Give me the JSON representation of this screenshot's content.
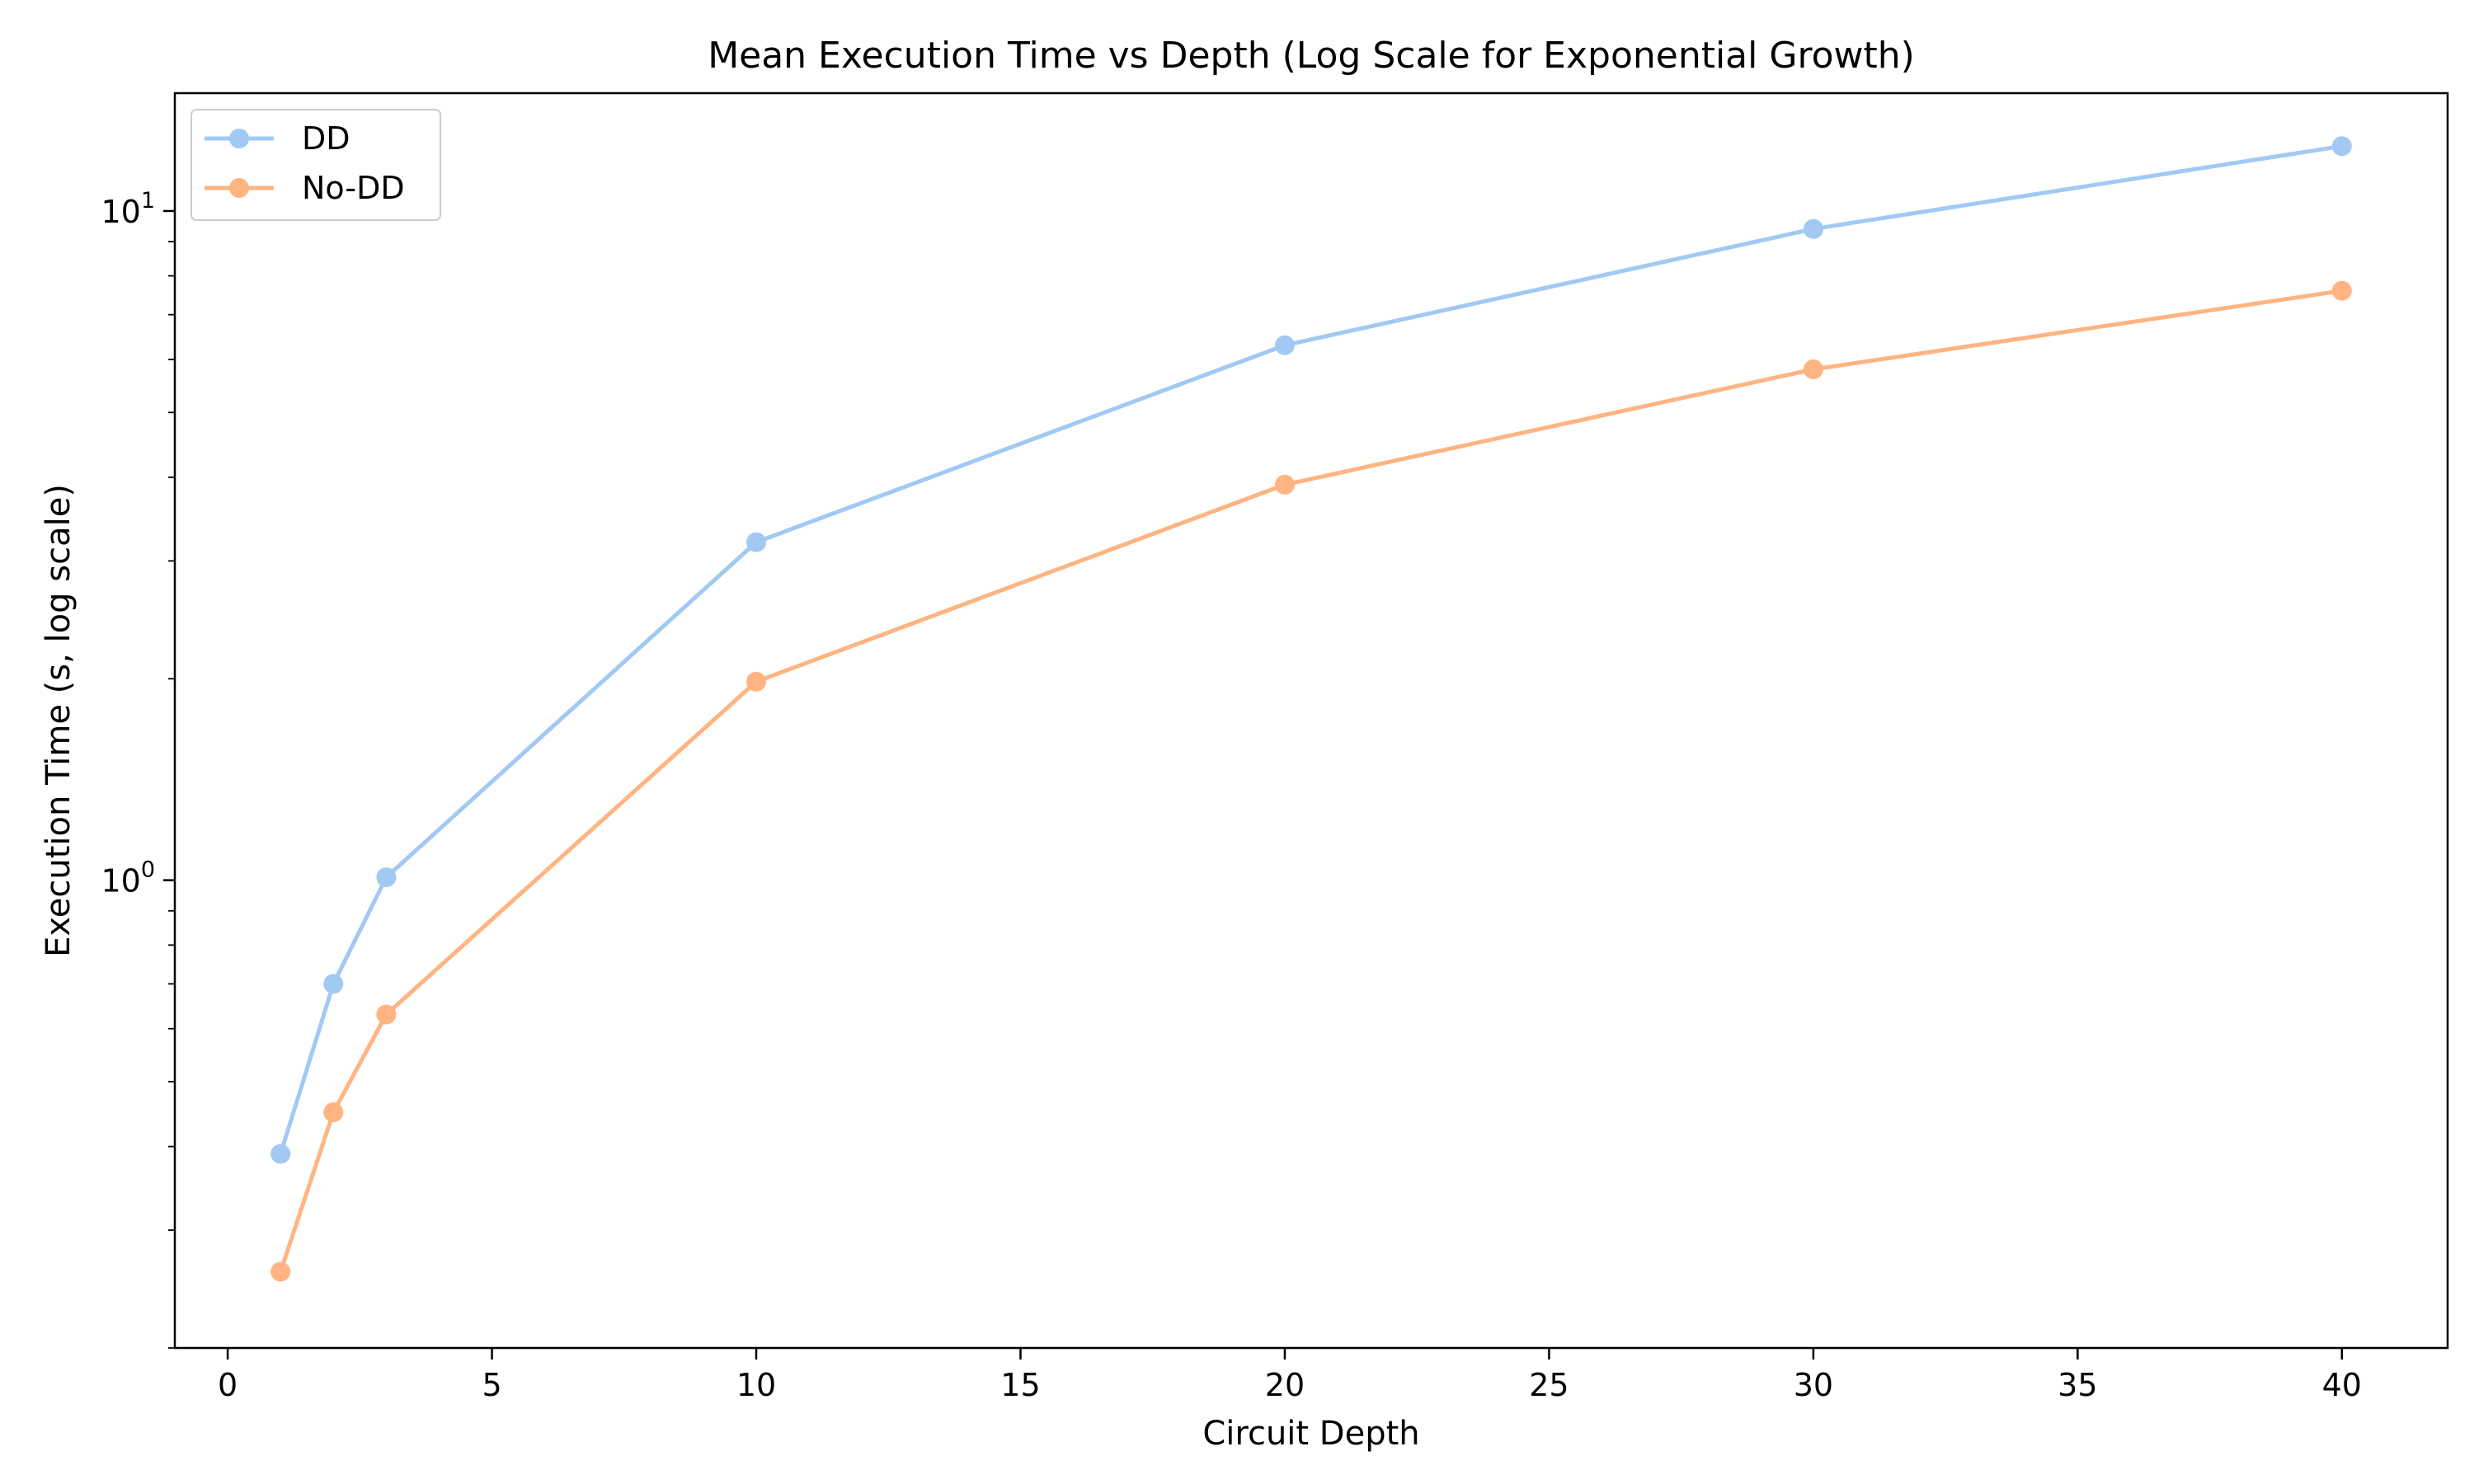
{
  "chart_data": {
    "type": "line",
    "title": "Mean Execution Time vs Depth (Log Scale for Exponential Growth)",
    "xlabel": "Circuit Depth",
    "ylabel": "Execution Time (s, log scale)",
    "x": [
      1,
      2,
      3,
      10,
      20,
      30,
      40
    ],
    "xlim": [
      -1,
      42
    ],
    "ylim": [
      0.2,
      15
    ],
    "yscale": "log",
    "x_ticks": [
      0,
      5,
      10,
      15,
      20,
      25,
      30,
      35,
      40
    ],
    "x_tick_labels": [
      "0",
      "5",
      "10",
      "15",
      "20",
      "25",
      "30",
      "35",
      "40"
    ],
    "y_ticks": [
      {
        "value": 1,
        "base": "10",
        "exp": "0"
      },
      {
        "value": 10,
        "base": "10",
        "exp": "1"
      }
    ],
    "grid": false,
    "legend": "top-left",
    "series": [
      {
        "name": "DD",
        "color": "#a1c9f4",
        "values": [
          0.39,
          0.7,
          1.01,
          3.2,
          6.3,
          9.4,
          12.5
        ]
      },
      {
        "name": "No-DD",
        "color": "#ffb482",
        "values": [
          0.26,
          0.45,
          0.63,
          1.98,
          3.9,
          5.8,
          7.6
        ]
      }
    ]
  }
}
